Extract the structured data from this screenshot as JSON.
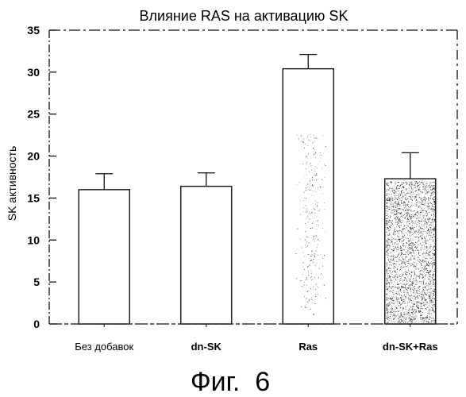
{
  "chart_data": {
    "type": "bar",
    "title": "Влияние RAS на активацию SK",
    "xlabel": "",
    "ylabel": "SK активность",
    "ylim": [
      0,
      35
    ],
    "yticks": [
      0,
      5,
      10,
      15,
      20,
      25,
      30,
      35
    ],
    "categories": [
      "Без добавок",
      "dn-SK",
      "Ras",
      "dn-SK+Ras"
    ],
    "values": [
      16.0,
      16.4,
      30.4,
      17.3
    ],
    "error_upper": [
      17.9,
      18.0,
      32.1,
      20.4
    ],
    "category_bold": [
      false,
      true,
      true,
      true
    ],
    "fill": [
      "plain",
      "plain",
      "light-stipple",
      "dense-stipple"
    ],
    "grid": false,
    "legend": "none"
  },
  "caption": "Фиг.  6"
}
